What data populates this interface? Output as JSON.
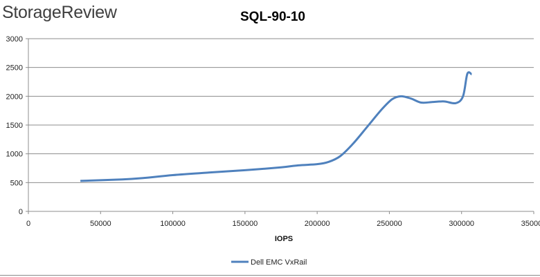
{
  "brand": "StorageReview",
  "chart_data": {
    "type": "line",
    "title": "SQL-90-10",
    "xlabel": "IOPS",
    "ylabel": "",
    "xlim": [
      0,
      350000
    ],
    "ylim": [
      0,
      3000
    ],
    "x_ticks": [
      "0",
      "50000",
      "100000",
      "150000",
      "200000",
      "250000",
      "300000",
      "350000"
    ],
    "y_ticks": [
      "0",
      "500",
      "1000",
      "1500",
      "2000",
      "2500",
      "3000"
    ],
    "grid": "horizontal",
    "legend": "bottom",
    "series": [
      {
        "name": "Dell EMC VxRail",
        "color": "#4f81bd",
        "points": [
          [
            36000,
            530
          ],
          [
            65000,
            555
          ],
          [
            80000,
            580
          ],
          [
            100000,
            630
          ],
          [
            125000,
            675
          ],
          [
            150000,
            715
          ],
          [
            175000,
            765
          ],
          [
            187000,
            800
          ],
          [
            200000,
            820
          ],
          [
            208000,
            860
          ],
          [
            216000,
            960
          ],
          [
            225000,
            1180
          ],
          [
            235000,
            1480
          ],
          [
            245000,
            1780
          ],
          [
            252000,
            1950
          ],
          [
            258000,
            2000
          ],
          [
            265000,
            1960
          ],
          [
            272000,
            1890
          ],
          [
            280000,
            1900
          ],
          [
            288000,
            1910
          ],
          [
            296000,
            1880
          ],
          [
            301000,
            2000
          ],
          [
            304000,
            2390
          ],
          [
            307000,
            2380
          ]
        ]
      }
    ]
  }
}
